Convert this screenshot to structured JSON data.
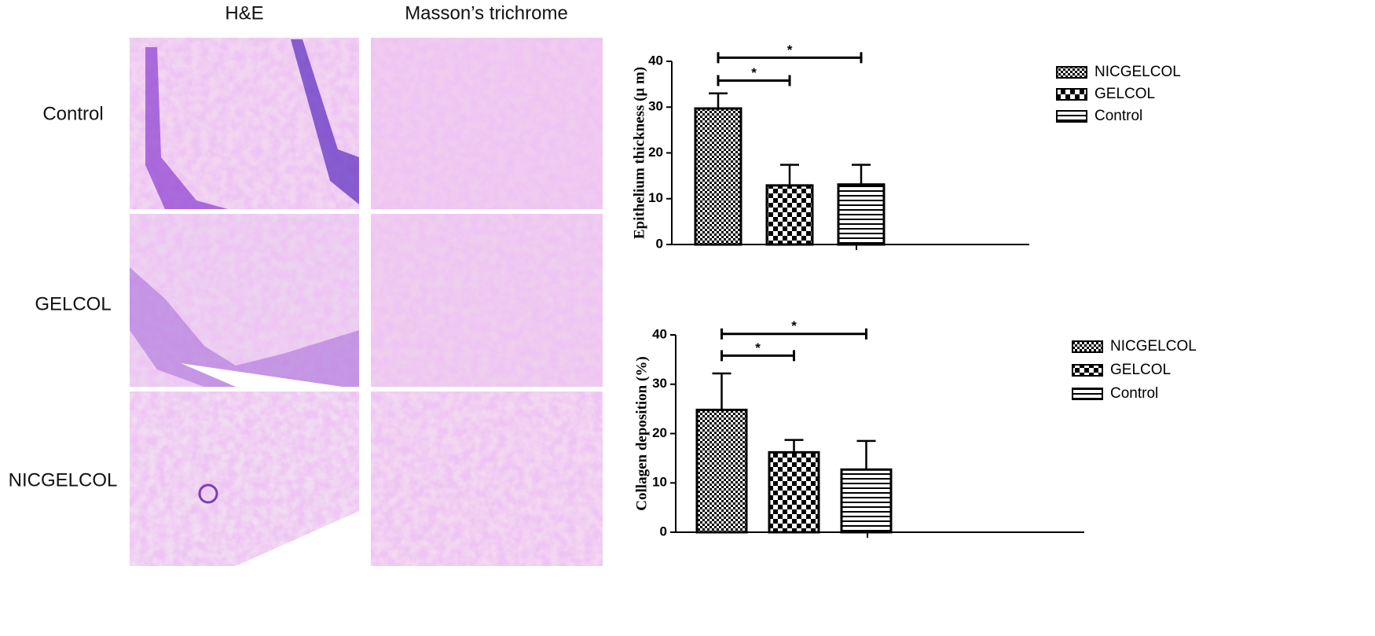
{
  "panel": {
    "columns": [
      "H&E",
      "Masson’s trichrome"
    ],
    "rows": [
      "Control",
      "GELCOL",
      "NICGELCOL"
    ]
  },
  "chart_data": [
    {
      "type": "bar",
      "y_label": "Epithelium thickness (μ m)",
      "categories": [
        null
      ],
      "series": [
        {
          "name": "NICGELCOL",
          "pattern": "dense-check",
          "values": [
            29.7
          ],
          "errors": [
            3.3
          ]
        },
        {
          "name": "GELCOL",
          "pattern": "check",
          "values": [
            12.9
          ],
          "errors": [
            4.5
          ]
        },
        {
          "name": "Control",
          "pattern": "hlines",
          "values": [
            13.1
          ],
          "errors": [
            4.3
          ]
        }
      ],
      "ylim": [
        0,
        40
      ],
      "yticks": [
        0,
        10,
        20,
        30,
        40
      ],
      "legend": "right",
      "annotations": [
        {
          "text": "*",
          "from": 0,
          "to": 1,
          "y": 35.8
        },
        {
          "text": "*",
          "from": 0,
          "to": 2,
          "y": 40.8
        }
      ]
    },
    {
      "type": "bar",
      "y_label": "Collagen deposition (%)",
      "categories": [
        null
      ],
      "series": [
        {
          "name": "NICGELCOL",
          "pattern": "dense-check",
          "values": [
            24.8
          ],
          "errors": [
            7.4
          ]
        },
        {
          "name": "GELCOL",
          "pattern": "check",
          "values": [
            16.2
          ],
          "errors": [
            2.5
          ]
        },
        {
          "name": "Control",
          "pattern": "hlines",
          "values": [
            12.7
          ],
          "errors": [
            5.8
          ]
        }
      ],
      "ylim": [
        0,
        40
      ],
      "yticks": [
        0,
        10,
        20,
        30,
        40
      ],
      "legend": "right",
      "annotations": [
        {
          "text": "*",
          "from": 0,
          "to": 1,
          "y": 35.8
        },
        {
          "text": "*",
          "from": 0,
          "to": 2,
          "y": 40.2
        }
      ]
    }
  ]
}
